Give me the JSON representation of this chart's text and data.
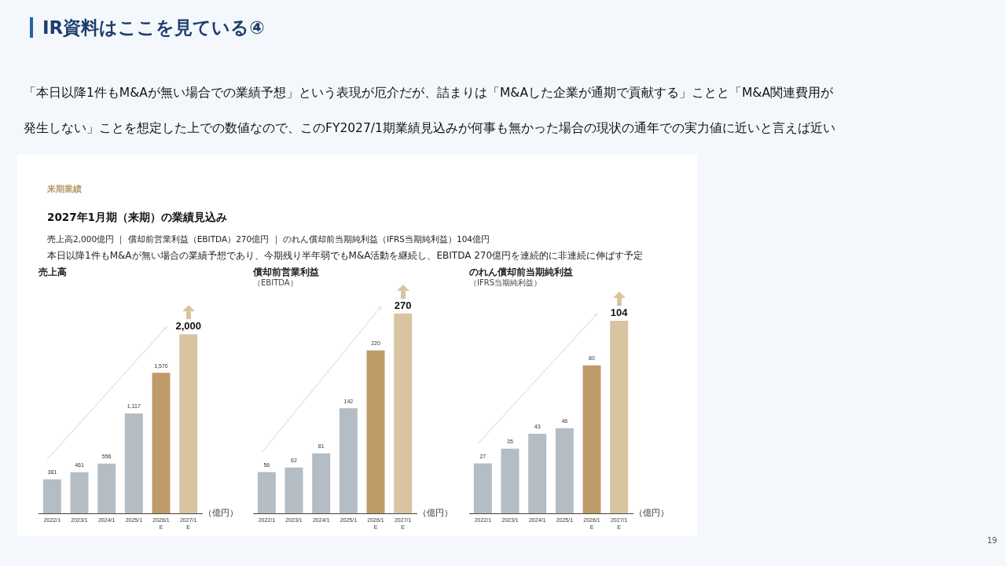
{
  "chart_data": [
    {
      "type": "bar",
      "title": "売上高",
      "ylabel": "（億円）",
      "categories": [
        "2022/1",
        "2023/1",
        "2024/1",
        "2025/1",
        "2026/1\nE",
        "2027/1\nE"
      ],
      "values": [
        381,
        461,
        556,
        1117,
        1570,
        2000
      ],
      "colors": [
        "#b4bcc4",
        "#b4bcc4",
        "#b4bcc4",
        "#b4bcc4",
        "#bf9b6a",
        "#d9c4a2"
      ],
      "value_labels": [
        "381",
        "461",
        "556",
        "1,117",
        "1,570",
        "2,000"
      ],
      "annotations": [
        "IR資料はここを見ている④",
        "「本日以降1件もM&Aが無い場合での業績予想」という表現が厄介だが、詰まりは「M&Aした企業が通期で貢献する」ことと「M&A関連費用が",
        "発生しない」ことを想定した上での数値なので、このFY2027/1期業績見込みが何事も無かった場合の現状の通年での実力値に近いと言えば近い",
        "来期業績",
        "2027年1月期（来期）の業績見込み",
        "売上高2,000億円 ｜ 償却前営業利益（EBITDA）270億円 ｜ のれん償却前当期純利益（IFRS当期純利益）104億円",
        "本日以降1件もM&Aが無い場合の業績予想であり、今期残り半年弱でもM&A活動を継続し、EBITDA 270億円を連続的に非連続に伸ばす予定",
        "19"
      ]
    },
    {
      "type": "bar",
      "title": "償却前営業利益",
      "subtitle": "（EBITDA）",
      "ylabel": "（億円）",
      "categories": [
        "2022/1",
        "2023/1",
        "2024/1",
        "2025/1",
        "2026/1\nE",
        "2027/1\nE"
      ],
      "values": [
        56,
        62,
        81,
        142,
        220,
        270
      ],
      "colors": [
        "#b4bcc4",
        "#b4bcc4",
        "#b4bcc4",
        "#b4bcc4",
        "#bf9b6a",
        "#d9c4a2"
      ],
      "data_labels": true
    },
    {
      "type": "bar",
      "title": "のれん償却前当期純利益",
      "subtitle": "（IFRS当期純利益）",
      "ylabel": "（億円）",
      "categories": [
        "2022/1",
        "2023/1",
        "2024/1",
        "2025/1",
        "2026/1\nE",
        "2027/1\nE"
      ],
      "values": [
        27,
        35,
        43,
        46,
        80,
        104
      ],
      "colors": [
        "#b4bcc4",
        "#b4bcc4",
        "#b4bcc4",
        "#b4bcc4",
        "#bf9b6a",
        "#d9c4a2"
      ],
      "data_labels": true
    }
  ]
}
